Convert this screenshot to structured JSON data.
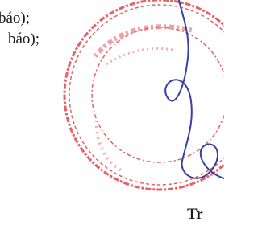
{
  "document": {
    "lines": [
      "báo);",
      "báo);"
    ],
    "signer_fragment": "Tr"
  }
}
